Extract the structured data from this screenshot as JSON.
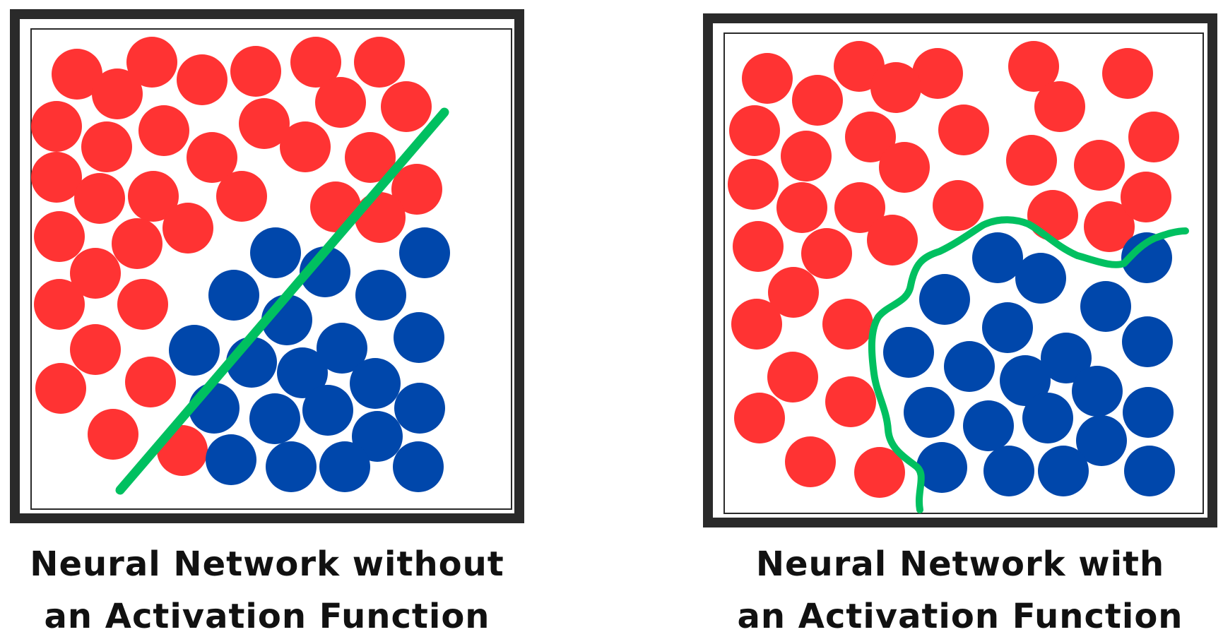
{
  "colors": {
    "red_dot": "#FF3333",
    "blue_dot": "#0047AB",
    "boundary": "#00C060",
    "frame": "#2a2a2a",
    "caption_text": "#111111"
  },
  "panels": [
    {
      "boundary_type": "linear",
      "caption": {
        "line1": "Neural Network without",
        "line2": "an Activation Function"
      }
    },
    {
      "boundary_type": "non-linear",
      "caption": {
        "line1": "Neural Network with",
        "line2": "an Activation Function"
      }
    }
  ]
}
